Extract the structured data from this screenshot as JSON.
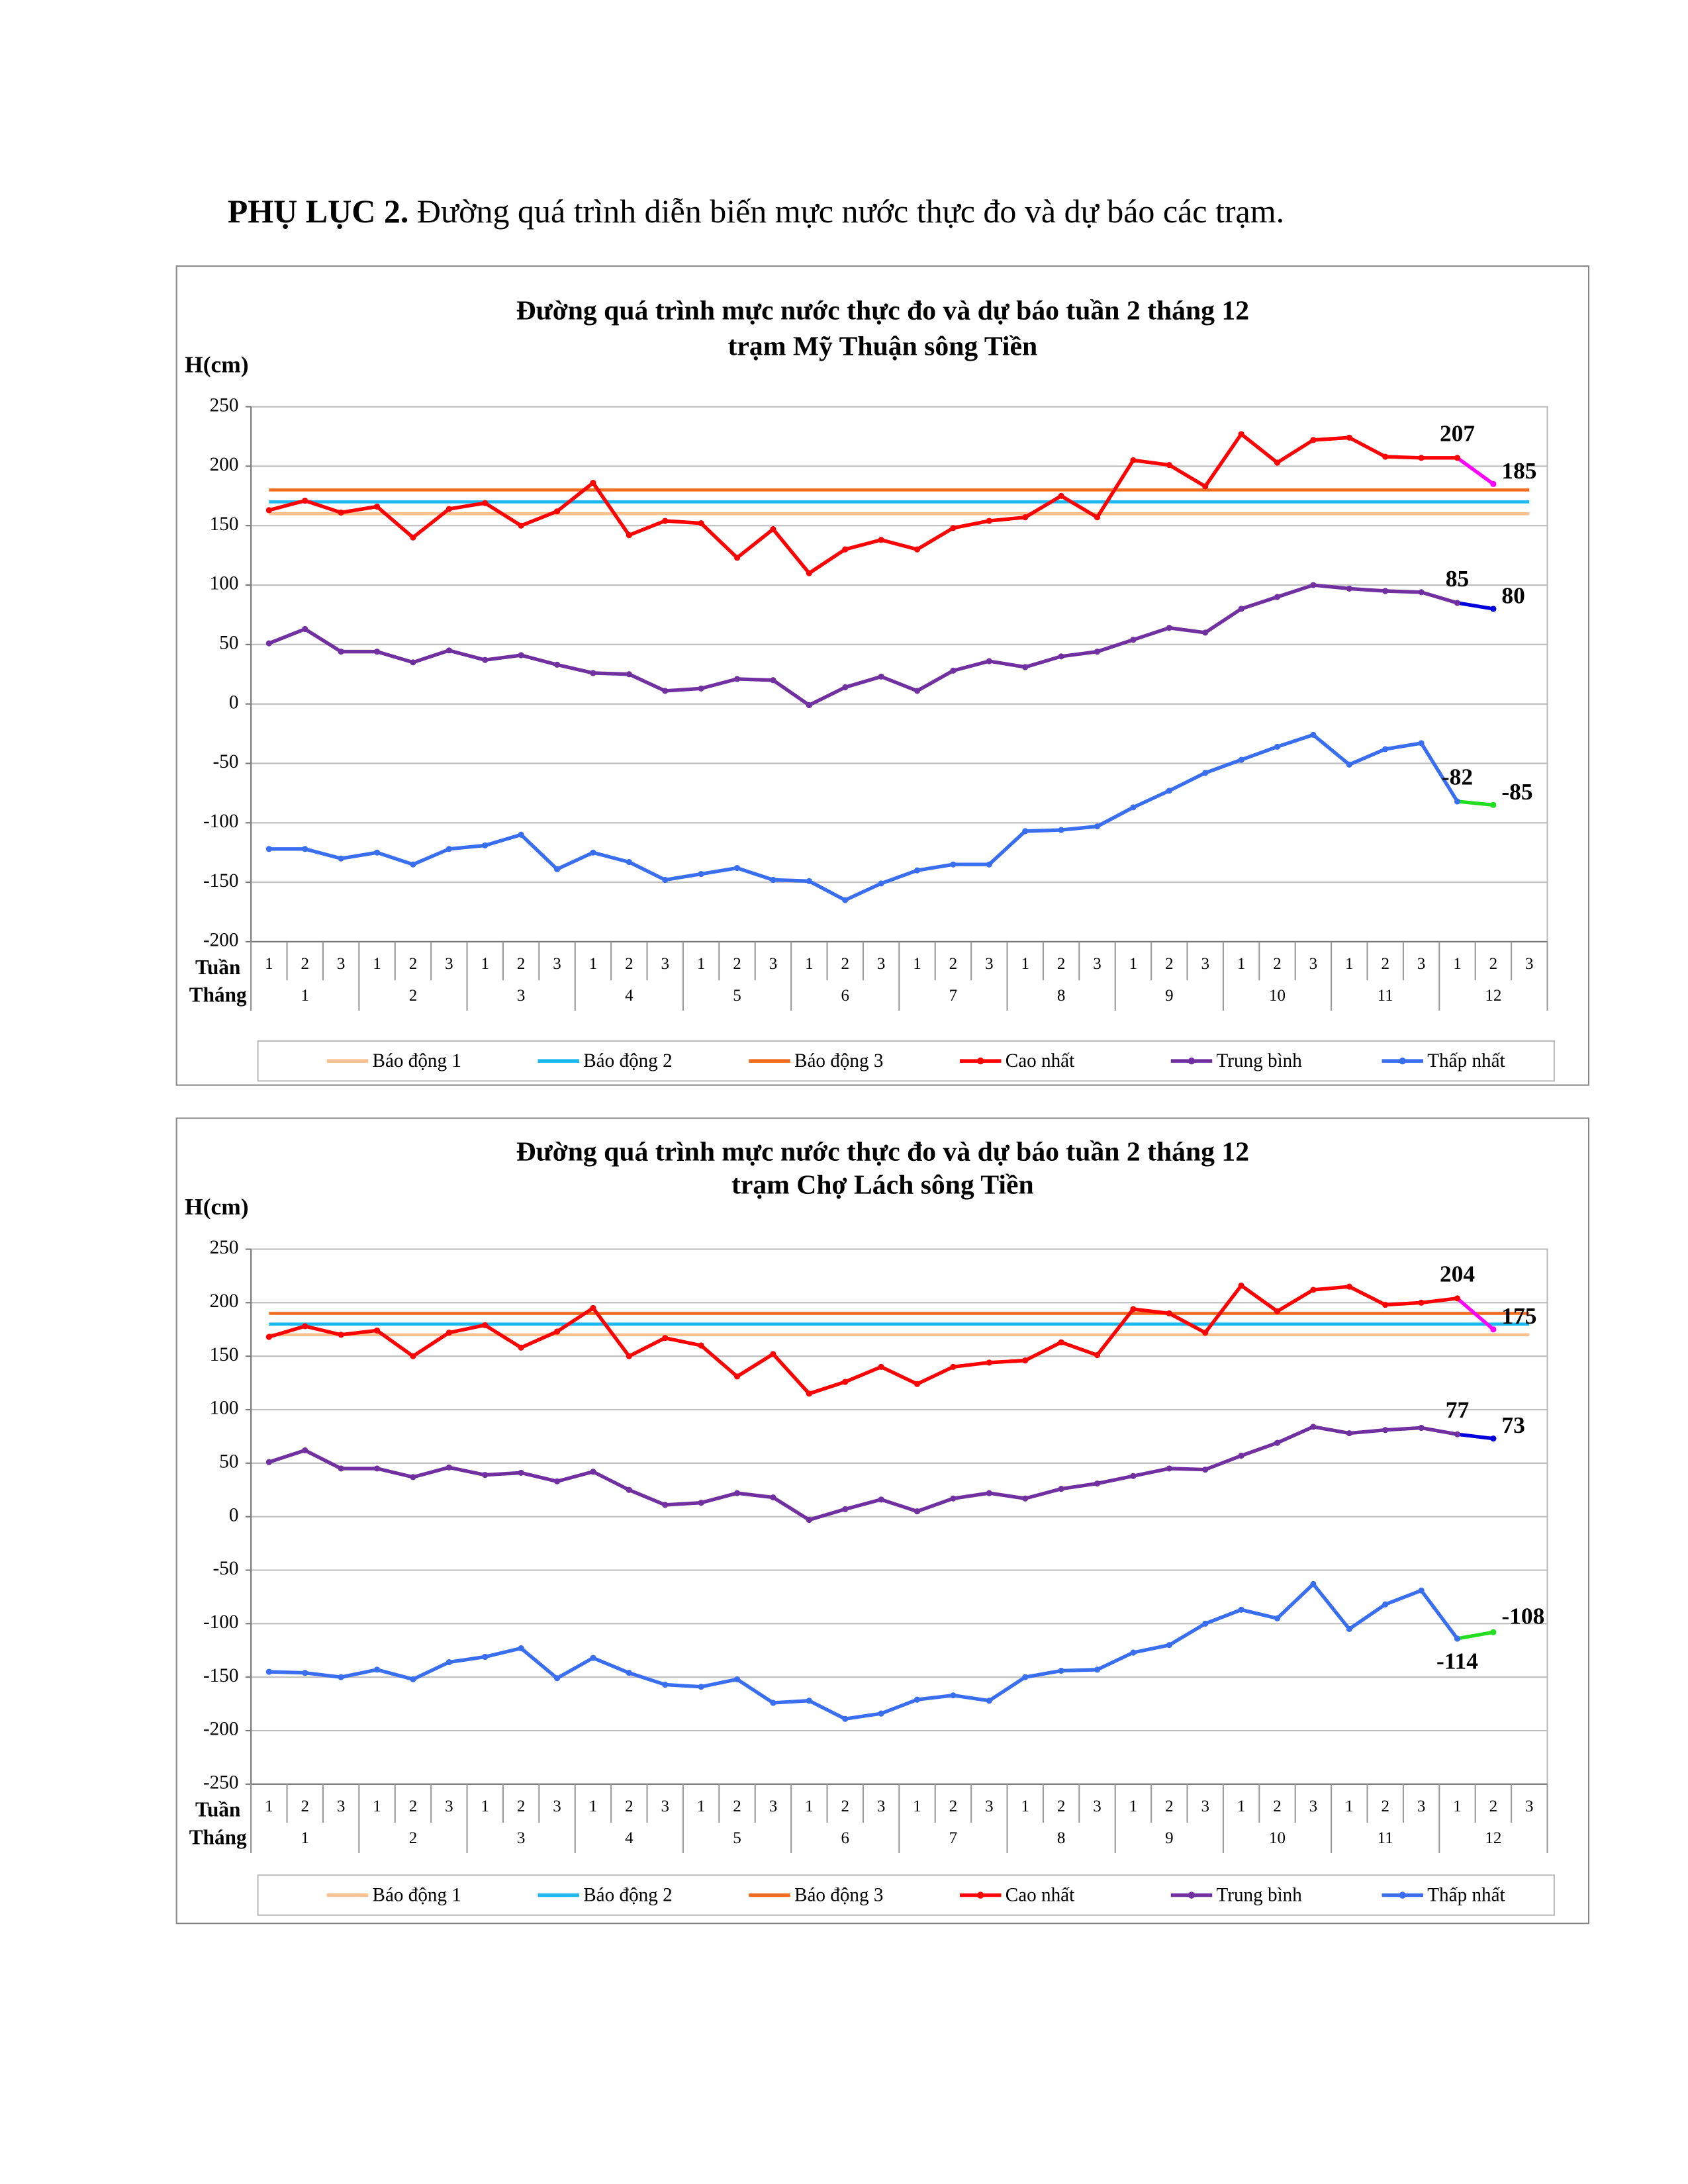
{
  "heading": {
    "label": "PHỤ LỤC 2.",
    "text": "Đường quá trình diễn biến mực nước thực đo và dự báo các trạm."
  },
  "chart_data": [
    {
      "type": "line",
      "title": "Đường quá trình mực nước thực đo và dự báo tuần 2 tháng 12",
      "subtitle": "trạm Mỹ Thuận sông Tiền",
      "y_label": "H(cm)",
      "category_label": "Tuần",
      "group_label": "Tháng",
      "categories": [
        1,
        2,
        3,
        1,
        2,
        3,
        1,
        2,
        3,
        1,
        2,
        3,
        1,
        2,
        3,
        1,
        2,
        3,
        1,
        2,
        3,
        1,
        2,
        3,
        1,
        2,
        3,
        1,
        2,
        3,
        1,
        2,
        3,
        1,
        2,
        3
      ],
      "groups": [
        1,
        2,
        3,
        4,
        5,
        6,
        7,
        8,
        9,
        10,
        11,
        12
      ],
      "ylim": [
        -200,
        250
      ],
      "yticks": [
        -200,
        -150,
        -100,
        -50,
        0,
        50,
        100,
        150,
        200,
        250
      ],
      "grid": true,
      "legend": "bottom",
      "series": [
        {
          "name": "Báo động 1",
          "color": "#fac090",
          "level": 160
        },
        {
          "name": "Báo động 2",
          "color": "#1ab8ee",
          "level": 170
        },
        {
          "name": "Báo động 3",
          "color": "#f26b1d",
          "level": 180
        },
        {
          "name": "Cao nhất",
          "color": "#ff0000",
          "forecast_color": "#ff00ff",
          "values": [
            163,
            171,
            161,
            166,
            140,
            164,
            169,
            150,
            162,
            186,
            142,
            154,
            152,
            123,
            147,
            110,
            130,
            138,
            130,
            148,
            154,
            157,
            175,
            157,
            205,
            201,
            183,
            227,
            203,
            222,
            224,
            208,
            207,
            207,
            185,
            null
          ]
        },
        {
          "name": "Trung bình",
          "color": "#7030a0",
          "forecast_color": "#0000dd",
          "values": [
            51,
            63,
            44,
            44,
            35,
            45,
            37,
            41,
            33,
            26,
            25,
            11,
            13,
            21,
            20,
            -1,
            14,
            23,
            11,
            28,
            36,
            31,
            40,
            44,
            54,
            64,
            60,
            80,
            90,
            100,
            97,
            95,
            94,
            85,
            80,
            null
          ]
        },
        {
          "name": "Thấp nhất",
          "color": "#3a6ef0",
          "forecast_color": "#22dd22",
          "values": [
            -122,
            -122,
            -130,
            -125,
            -135,
            -122,
            -119,
            -110,
            -139,
            -125,
            -133,
            -148,
            -143,
            -138,
            -148,
            -149,
            -165,
            -151,
            -140,
            -135,
            -135,
            -107,
            -106,
            -103,
            -87,
            -73,
            -58,
            -47,
            -36,
            -26,
            -51,
            -38,
            -33,
            -82,
            -85,
            null
          ]
        }
      ]
    },
    {
      "type": "line",
      "title": "Đường quá trình mực nước thực đo và dự báo tuần 2 tháng 12",
      "subtitle": "trạm Chợ Lách sông Tiền",
      "y_label": "H(cm)",
      "category_label": "Tuần",
      "group_label": "Tháng",
      "categories": [
        1,
        2,
        3,
        1,
        2,
        3,
        1,
        2,
        3,
        1,
        2,
        3,
        1,
        2,
        3,
        1,
        2,
        3,
        1,
        2,
        3,
        1,
        2,
        3,
        1,
        2,
        3,
        1,
        2,
        3,
        1,
        2,
        3,
        1,
        2,
        3
      ],
      "groups": [
        1,
        2,
        3,
        4,
        5,
        6,
        7,
        8,
        9,
        10,
        11,
        12
      ],
      "ylim": [
        -250,
        250
      ],
      "yticks": [
        -250,
        -200,
        -150,
        -100,
        -50,
        0,
        50,
        100,
        150,
        200,
        250
      ],
      "grid": true,
      "legend": "bottom",
      "series": [
        {
          "name": "Báo động 1",
          "color": "#fac090",
          "level": 170
        },
        {
          "name": "Báo động 2",
          "color": "#1ab8ee",
          "level": 180
        },
        {
          "name": "Báo động 3",
          "color": "#f26b1d",
          "level": 190
        },
        {
          "name": "Cao nhất",
          "color": "#ff0000",
          "forecast_color": "#ff00ff",
          "values": [
            168,
            178,
            170,
            174,
            150,
            172,
            179,
            158,
            173,
            195,
            150,
            167,
            160,
            131,
            152,
            115,
            126,
            140,
            124,
            140,
            144,
            146,
            163,
            151,
            194,
            190,
            172,
            216,
            192,
            212,
            215,
            198,
            200,
            204,
            175,
            null
          ]
        },
        {
          "name": "Trung bình",
          "color": "#7030a0",
          "forecast_color": "#0000dd",
          "values": [
            51,
            62,
            45,
            45,
            37,
            46,
            39,
            41,
            33,
            42,
            25,
            11,
            13,
            22,
            18,
            -3,
            7,
            16,
            5,
            17,
            22,
            17,
            26,
            31,
            38,
            45,
            44,
            57,
            69,
            84,
            78,
            81,
            83,
            77,
            73,
            null
          ]
        },
        {
          "name": "Thấp nhất",
          "color": "#3a6ef0",
          "forecast_color": "#22dd22",
          "values": [
            -145,
            -146,
            -150,
            -143,
            -152,
            -136,
            -131,
            -123,
            -151,
            -132,
            -146,
            -157,
            -159,
            -152,
            -174,
            -172,
            -189,
            -184,
            -171,
            -167,
            -172,
            -150,
            -144,
            -143,
            -127,
            -120,
            -100,
            -87,
            -95,
            -63,
            -105,
            -82,
            -69,
            -114,
            -108,
            null
          ]
        }
      ]
    }
  ]
}
